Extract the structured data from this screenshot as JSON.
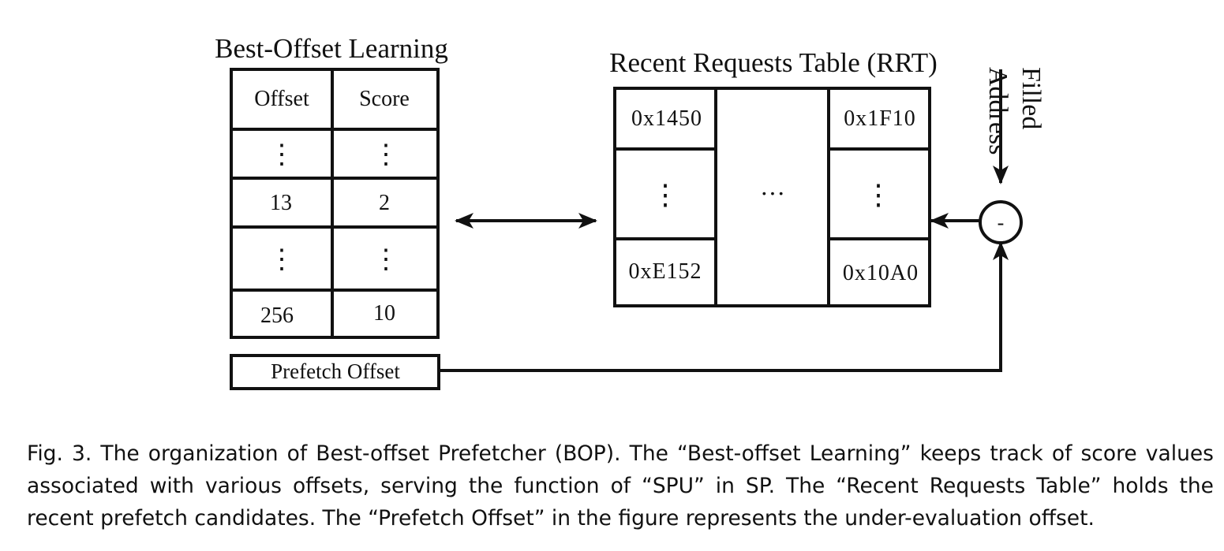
{
  "best_offset": {
    "title": "Best-Offset Learning",
    "header": {
      "offset": "Offset",
      "score": "Score"
    },
    "rows": [
      {
        "offset": "⋮",
        "score": "⋮"
      },
      {
        "offset": "13",
        "score": "2"
      },
      {
        "offset": "⋮",
        "score": "⋮"
      },
      {
        "offset": "256",
        "score": "10"
      }
    ]
  },
  "prefetch_offset": {
    "label": "Prefetch Offset"
  },
  "rrt": {
    "title": "Recent Requests Table (RRT)",
    "left_col": [
      "0x1450",
      "⋮",
      "0xE152"
    ],
    "middle": "···",
    "right_col": [
      "0x1F10",
      "⋮",
      "0x10A0"
    ]
  },
  "filled_address": {
    "line1": "Filled",
    "line2": "Address"
  },
  "subtractor": {
    "symbol": "-"
  },
  "caption": "Fig. 3.  The organization of Best-offset Prefetcher (BOP). The “Best-offset Learning” keeps track of score values associated with various offsets, serving the function of “SPU” in SP. The “Recent Requests Table” holds the recent prefetch candidates. The “Prefetch Offset” in the figure represents the under-evaluation offset."
}
